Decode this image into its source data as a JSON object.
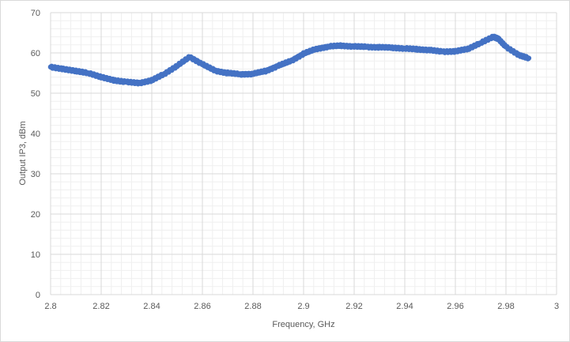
{
  "chart_data": {
    "type": "scatter",
    "title": "",
    "xlabel": "Frequency, GHz",
    "ylabel": "Output IP3, dBm",
    "xlim": [
      2.8,
      3.0
    ],
    "ylim": [
      0,
      70
    ],
    "x_ticks": [
      "2.8",
      "2.82",
      "2.84",
      "2.86",
      "2.88",
      "2.9",
      "2.92",
      "2.94",
      "2.96",
      "2.98",
      "3"
    ],
    "y_ticks": [
      "0",
      "10",
      "20",
      "30",
      "40",
      "50",
      "60",
      "70"
    ],
    "grid": "major and minor",
    "legend": "none",
    "series": [
      {
        "color": "#4472c4",
        "marker": "circle",
        "x": [
          2.8,
          2.805,
          2.81,
          2.815,
          2.82,
          2.825,
          2.83,
          2.835,
          2.84,
          2.845,
          2.85,
          2.855,
          2.86,
          2.865,
          2.87,
          2.875,
          2.88,
          2.885,
          2.89,
          2.895,
          2.9,
          2.905,
          2.91,
          2.915,
          2.92,
          2.925,
          2.93,
          2.935,
          2.94,
          2.945,
          2.95,
          2.955,
          2.96,
          2.965,
          2.97,
          2.975,
          2.977,
          2.98,
          2.985,
          2.989
        ],
        "y": [
          56.5,
          56.0,
          55.5,
          55.0,
          54.0,
          53.2,
          52.8,
          52.5,
          53.2,
          54.8,
          56.8,
          59.0,
          57.2,
          55.6,
          55.0,
          54.7,
          54.8,
          55.5,
          56.8,
          58.0,
          59.8,
          61.0,
          61.6,
          61.8,
          61.6,
          61.5,
          61.4,
          61.3,
          61.1,
          60.9,
          60.7,
          60.3,
          60.4,
          61.0,
          62.5,
          64.0,
          63.5,
          61.5,
          59.5,
          58.7
        ]
      }
    ]
  }
}
